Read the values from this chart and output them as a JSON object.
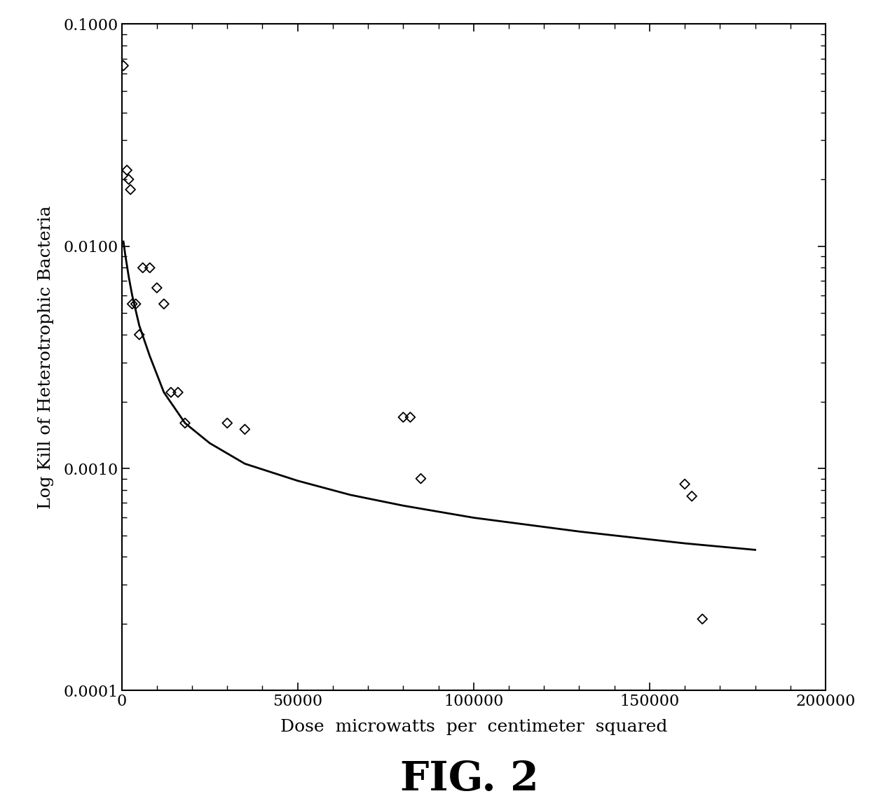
{
  "scatter_x": [
    500,
    1500,
    2000,
    2500,
    3000,
    4000,
    5000,
    6000,
    8000,
    10000,
    12000,
    14000,
    16000,
    18000,
    30000,
    35000,
    80000,
    82000,
    85000,
    160000,
    162000,
    165000
  ],
  "scatter_y": [
    0.065,
    0.022,
    0.02,
    0.018,
    0.0055,
    0.0055,
    0.004,
    0.008,
    0.008,
    0.0065,
    0.0055,
    0.0022,
    0.0022,
    0.0016,
    0.0016,
    0.0015,
    0.0017,
    0.0017,
    0.0009,
    0.00085,
    0.00075,
    0.00021
  ],
  "curve_x": [
    500,
    1000,
    2000,
    3000,
    5000,
    8000,
    12000,
    18000,
    25000,
    35000,
    50000,
    65000,
    80000,
    100000,
    130000,
    160000,
    180000
  ],
  "curve_y": [
    0.0105,
    0.0092,
    0.0073,
    0.006,
    0.0044,
    0.0032,
    0.0022,
    0.0016,
    0.0013,
    0.00105,
    0.00088,
    0.00076,
    0.00068,
    0.0006,
    0.00052,
    0.00046,
    0.00043
  ],
  "xlim": [
    0,
    200000
  ],
  "ylim": [
    0.0001,
    0.1
  ],
  "xlabel": "Dose  microwatts  per  centimeter  squared",
  "ylabel": "Log Kill of Heterotrophic Bacteria",
  "title": "FIG. 2",
  "marker_color": "black",
  "line_color": "black",
  "background_color": "white",
  "marker_size": 7,
  "title_fontsize": 42,
  "label_fontsize": 18,
  "tick_fontsize": 16,
  "ytick_labels": [
    "0.0001",
    "0.0010",
    "0.0100",
    "0.1000"
  ],
  "ytick_values": [
    0.0001,
    0.001,
    0.01,
    0.1
  ],
  "xtick_values": [
    0,
    50000,
    100000,
    150000,
    200000
  ],
  "xtick_labels": [
    "0",
    "50000",
    "100000",
    "150000",
    "200000"
  ]
}
